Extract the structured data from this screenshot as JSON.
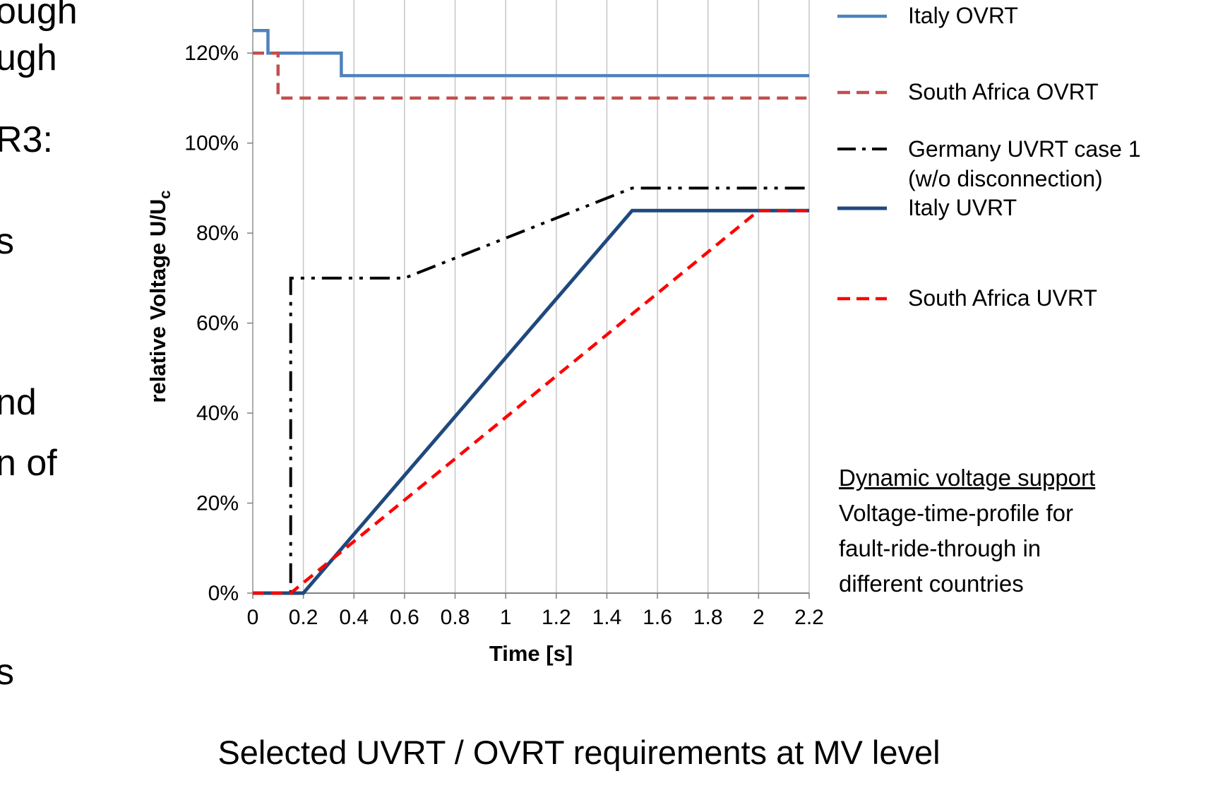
{
  "left_text_fragments": [
    "ough",
    "ugh",
    "R3:",
    "s",
    "nd",
    "n of",
    "s"
  ],
  "chart_data": {
    "type": "line",
    "title": "Selected UVRT / OVRT requirements at MV level",
    "xlabel": "Time [s]",
    "ylabel_main": "relative Voltage U/U",
    "ylabel_sub": "c",
    "xlim": [
      0,
      2.2
    ],
    "ylim": [
      0,
      131.8
    ],
    "x_ticks": [
      0,
      0.2,
      0.4,
      0.6,
      0.8,
      1,
      1.2,
      1.4,
      1.6,
      1.8,
      2,
      2.2
    ],
    "x_tick_labels": [
      "0",
      "0.2",
      "0.4",
      "0.6",
      "0.8",
      "1",
      "1.2",
      "1.4",
      "1.6",
      "1.8",
      "2",
      "2.2"
    ],
    "y_ticks": [
      0,
      20,
      40,
      60,
      80,
      100,
      120
    ],
    "y_tick_labels": [
      "0%",
      "20%",
      "40%",
      "60%",
      "80%",
      "100%",
      "120%"
    ],
    "grid": "vertical-major-only",
    "legend_position": "right",
    "series": [
      {
        "name": "Italy OVRT",
        "color": "#4f81bd",
        "width": 4.5,
        "points": [
          [
            0,
            125
          ],
          [
            0.06,
            125
          ],
          [
            0.06,
            120
          ],
          [
            0.35,
            120
          ],
          [
            0.35,
            115
          ],
          [
            2.2,
            115
          ]
        ]
      },
      {
        "name": "South Africa OVRT",
        "color": "#c0504d",
        "width": 4.5,
        "dash": "16 10",
        "points": [
          [
            0,
            120
          ],
          [
            0.1,
            120
          ],
          [
            0.1,
            110
          ],
          [
            2.2,
            110
          ]
        ]
      },
      {
        "name": "Germany UVRT case 1 (w/o disconnection)",
        "color": "#000000",
        "width": 4,
        "dash": "28 10 5 10 5 10",
        "points": [
          [
            0,
            0
          ],
          [
            0.15,
            0
          ],
          [
            0.15,
            70
          ],
          [
            0.6,
            70
          ],
          [
            1.5,
            90
          ],
          [
            2.2,
            90
          ]
        ]
      },
      {
        "name": "Italy UVRT",
        "color": "#1f497d",
        "width": 5,
        "points": [
          [
            0,
            0
          ],
          [
            0.2,
            0
          ],
          [
            1.5,
            85
          ],
          [
            2.2,
            85
          ]
        ]
      },
      {
        "name": "South Africa UVRT",
        "color": "#ff0000",
        "width": 4.5,
        "dash": "16 10",
        "points": [
          [
            0,
            0
          ],
          [
            0.15,
            0
          ],
          [
            2,
            85
          ],
          [
            2.2,
            85
          ]
        ]
      }
    ],
    "annotation": {
      "heading": "Dynamic voltage support",
      "lines": [
        "Voltage-time-profile for",
        "fault-ride-through in",
        "different countries"
      ]
    }
  },
  "legend": {
    "items": [
      {
        "label": "Italy OVRT",
        "color": "#4f81bd"
      },
      {
        "label": "South Africa OVRT",
        "color": "#c0504d",
        "dash": "18 9"
      },
      {
        "label": "Germany UVRT case 1",
        "label2": "(w/o disconnection)",
        "color": "#000000",
        "dash": "26 9 5 9"
      },
      {
        "label": "Italy UVRT",
        "color": "#1f497d"
      },
      {
        "label": "South Africa UVRT",
        "color": "#ff0000",
        "dash": "18 9"
      }
    ]
  }
}
